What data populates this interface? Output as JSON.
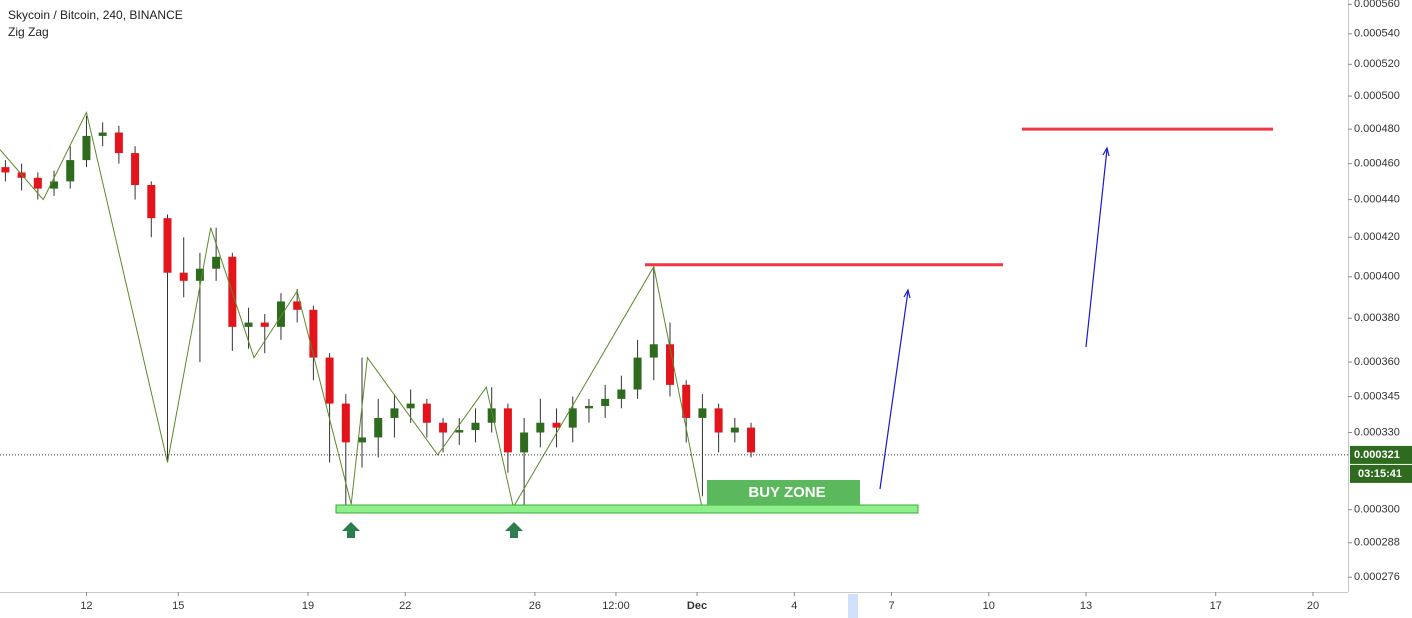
{
  "chart_data": {
    "type": "candlestick",
    "title": "Skycoin / Bitcoin, 240, BINANCE",
    "indicator": "Zig Zag",
    "log_scale": true,
    "up_color": "#2f6b1f",
    "down_color": "#e3141b",
    "ylim": [
      0.000271,
      0.000563
    ],
    "yticks": [
      {
        "value": 0.00056,
        "label": "0.000560"
      },
      {
        "value": 0.00054,
        "label": "0.000540"
      },
      {
        "value": 0.00052,
        "label": "0.000520"
      },
      {
        "value": 0.0005,
        "label": "0.000500"
      },
      {
        "value": 0.00048,
        "label": "0.000480"
      },
      {
        "value": 0.00046,
        "label": "0.000460"
      },
      {
        "value": 0.00044,
        "label": "0.000440"
      },
      {
        "value": 0.00042,
        "label": "0.000420"
      },
      {
        "value": 0.0004,
        "label": "0.000400"
      },
      {
        "value": 0.00038,
        "label": "0.000380"
      },
      {
        "value": 0.00036,
        "label": "0.000360"
      },
      {
        "value": 0.000345,
        "label": "0.000345"
      },
      {
        "value": 0.00033,
        "label": "0.000330"
      },
      {
        "value": 0.0003,
        "label": "0.000300"
      },
      {
        "value": 0.000288,
        "label": "0.000288"
      },
      {
        "value": 0.000276,
        "label": "0.000276"
      }
    ],
    "xlim": [
      0,
      248
    ],
    "xticks": [
      {
        "value": 16,
        "label": "12"
      },
      {
        "value": 33,
        "label": "15"
      },
      {
        "value": 57,
        "label": "19"
      },
      {
        "value": 75,
        "label": "22"
      },
      {
        "value": 99,
        "label": "26"
      },
      {
        "value": 114,
        "label": "12:00"
      },
      {
        "value": 129,
        "label": "Dec"
      },
      {
        "value": 147,
        "label": "4"
      },
      {
        "value": 165,
        "label": "7"
      },
      {
        "value": 183,
        "label": "10"
      },
      {
        "value": 201,
        "label": "13"
      },
      {
        "value": 225,
        "label": "17"
      },
      {
        "value": 243,
        "label": "20"
      }
    ],
    "candles": {
      "x": [
        1,
        4,
        7,
        10,
        13,
        16,
        19,
        22,
        25,
        28,
        31,
        34,
        37,
        40,
        43,
        46,
        49,
        52,
        55,
        58,
        61,
        64,
        67,
        70,
        73,
        76,
        79,
        82,
        85,
        88,
        91,
        94,
        97,
        100,
        103,
        106,
        109,
        112,
        115,
        118,
        121,
        124,
        127,
        130,
        133,
        136,
        139
      ],
      "open": [
        0.000458,
        0.000455,
        0.000452,
        0.000446,
        0.00045,
        0.000462,
        0.000476,
        0.000478,
        0.000466,
        0.000448,
        0.00043,
        0.000402,
        0.000398,
        0.000404,
        0.00041,
        0.000376,
        0.000378,
        0.000376,
        0.000388,
        0.000384,
        0.000362,
        0.000342,
        0.000326,
        0.000328,
        0.000336,
        0.00034,
        0.000342,
        0.000334,
        0.00033,
        0.000331,
        0.000334,
        0.00034,
        0.000322,
        0.00033,
        0.000334,
        0.000332,
        0.00034,
        0.000341,
        0.000344,
        0.000348,
        0.000362,
        0.000368,
        0.00035,
        0.000336,
        0.00034,
        0.00033,
        0.000332
      ],
      "high": [
        0.000462,
        0.00046,
        0.000455,
        0.000456,
        0.00047,
        0.000488,
        0.000484,
        0.000482,
        0.00047,
        0.00045,
        0.000432,
        0.00042,
        0.000412,
        0.000425,
        0.000412,
        0.000385,
        0.000382,
        0.000392,
        0.000394,
        0.000386,
        0.000364,
        0.000346,
        0.000362,
        0.000344,
        0.000346,
        0.000348,
        0.000344,
        0.000336,
        0.000336,
        0.00034,
        0.000349,
        0.000342,
        0.000336,
        0.000344,
        0.00034,
        0.000345,
        0.000344,
        0.00035,
        0.000354,
        0.00037,
        0.000405,
        0.000378,
        0.000352,
        0.000346,
        0.000342,
        0.000336,
        0.000334
      ],
      "low": [
        0.00045,
        0.000445,
        0.00044,
        0.000442,
        0.000446,
        0.000458,
        0.00047,
        0.00046,
        0.00044,
        0.00042,
        0.000318,
        0.00039,
        0.00036,
        0.000398,
        0.000365,
        0.000366,
        0.000364,
        0.00037,
        0.000378,
        0.000352,
        0.000318,
        0.0003,
        0.000316,
        0.00032,
        0.000328,
        0.000334,
        0.000328,
        0.000322,
        0.000325,
        0.000326,
        0.00033,
        0.000314,
        0.000301,
        0.000324,
        0.000324,
        0.000326,
        0.000334,
        0.000336,
        0.00034,
        0.000344,
        0.000352,
        0.000345,
        0.000326,
        0.000305,
        0.000322,
        0.000326,
        0.00032
      ],
      "close": [
        0.000455,
        0.000452,
        0.000446,
        0.00045,
        0.000462,
        0.000476,
        0.000478,
        0.000466,
        0.000448,
        0.00043,
        0.000402,
        0.000398,
        0.000404,
        0.00041,
        0.000376,
        0.000378,
        0.000376,
        0.000388,
        0.000384,
        0.000362,
        0.000342,
        0.000326,
        0.000328,
        0.000336,
        0.00034,
        0.000342,
        0.000334,
        0.00033,
        0.000331,
        0.000334,
        0.00034,
        0.000322,
        0.00033,
        0.000334,
        0.000332,
        0.00034,
        0.000341,
        0.000344,
        0.000348,
        0.000362,
        0.000368,
        0.00035,
        0.000336,
        0.00034,
        0.00033,
        0.000332,
        0.000322
      ]
    },
    "zigzag": {
      "color": "#5b8a2a",
      "x": [
        0,
        8,
        16,
        31,
        39,
        47,
        55,
        65,
        68,
        81,
        90,
        95,
        121,
        130
      ],
      "values": [
        0.000468,
        0.00044,
        0.00049,
        0.000318,
        0.000425,
        0.000362,
        0.000393,
        0.000302,
        0.000362,
        0.000321,
        0.000349,
        0.000301,
        0.000405,
        0.0003
      ]
    },
    "levels": [
      {
        "value": 0.000406,
        "color": "#f23645"
      },
      {
        "value": 0.00048,
        "color": "#f23645"
      }
    ],
    "annotation": "BUY ZONE",
    "last_price": {
      "value": 0.000321,
      "label": "0.000321"
    },
    "countdown": "03:15:41"
  }
}
